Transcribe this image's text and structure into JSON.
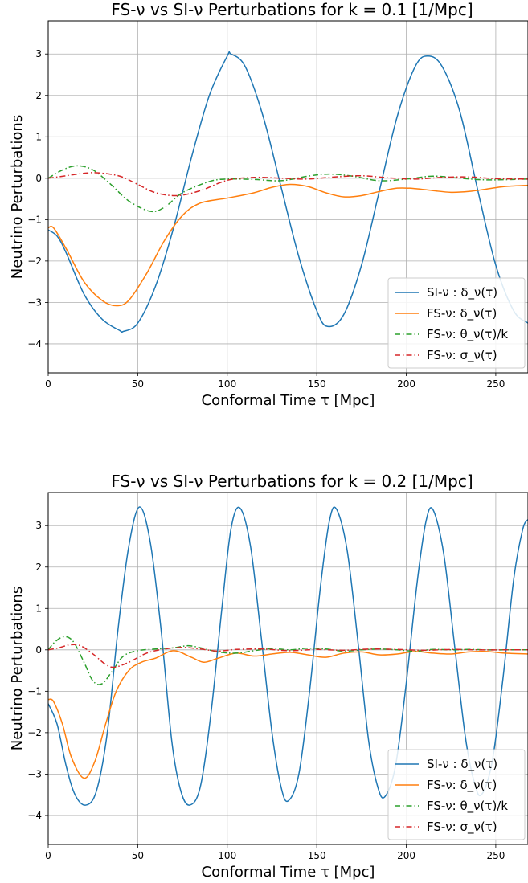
{
  "chart_data": [
    {
      "type": "line",
      "title": "FS-ν vs SI-ν Perturbations for k = 0.1 [1/Mpc]",
      "xlabel": "Conformal Time τ [Mpc]",
      "ylabel": "Neutrino Perturbations",
      "xlim": [
        0,
        268
      ],
      "ylim": [
        -4.7,
        3.8
      ],
      "xticks": [
        0,
        50,
        100,
        150,
        200,
        250
      ],
      "yticks": [
        -4,
        -3,
        -2,
        -1,
        0,
        1,
        2,
        3
      ],
      "grid": true,
      "legend_position": "lower-right",
      "series": [
        {
          "name": "SI-ν : δ_ν(τ)",
          "color": "#1f77b4",
          "dash": "solid",
          "x": [
            0,
            5,
            10,
            20,
            30,
            40,
            42,
            50,
            60,
            70,
            80,
            90,
            100,
            102,
            110,
            120,
            130,
            140,
            150,
            156,
            165,
            175,
            185,
            195,
            205,
            212,
            220,
            230,
            240,
            250,
            260,
            268
          ],
          "y": [
            -1.25,
            -1.4,
            -1.8,
            -2.8,
            -3.4,
            -3.68,
            -3.7,
            -3.5,
            -2.6,
            -1.2,
            0.5,
            2.0,
            2.95,
            3.0,
            2.7,
            1.5,
            -0.2,
            -1.9,
            -3.2,
            -3.58,
            -3.3,
            -2.1,
            -0.3,
            1.5,
            2.7,
            2.95,
            2.7,
            1.6,
            -0.3,
            -2.1,
            -3.2,
            -3.5
          ]
        },
        {
          "name": "FS-ν: δ_ν(τ)",
          "color": "#ff7f0e",
          "dash": "solid",
          "x": [
            0,
            3,
            10,
            20,
            30,
            38,
            45,
            55,
            65,
            75,
            85,
            100,
            115,
            125,
            135,
            145,
            155,
            165,
            175,
            185,
            195,
            205,
            215,
            225,
            235,
            245,
            255,
            268
          ],
          "y": [
            -1.2,
            -1.2,
            -1.7,
            -2.5,
            -2.95,
            -3.08,
            -2.95,
            -2.3,
            -1.5,
            -0.9,
            -0.6,
            -0.48,
            -0.35,
            -0.22,
            -0.15,
            -0.2,
            -0.35,
            -0.45,
            -0.42,
            -0.32,
            -0.24,
            -0.25,
            -0.3,
            -0.34,
            -0.32,
            -0.26,
            -0.2,
            -0.17
          ]
        },
        {
          "name": "FS-ν: θ_ν(τ)/k",
          "color": "#2ca02c",
          "dash": "dashdot",
          "x": [
            0,
            8,
            16,
            25,
            35,
            45,
            57,
            65,
            75,
            90,
            100,
            115,
            130,
            145,
            157,
            170,
            185,
            200,
            215,
            230,
            245,
            268
          ],
          "y": [
            0,
            0.2,
            0.3,
            0.2,
            -0.15,
            -0.55,
            -0.8,
            -0.7,
            -0.35,
            -0.08,
            -0.02,
            -0.03,
            -0.06,
            0.05,
            0.1,
            0.05,
            -0.06,
            -0.02,
            0.05,
            0.0,
            -0.04,
            -0.02
          ]
        },
        {
          "name": "FS-ν: σ_ν(τ)",
          "color": "#d62728",
          "dash": "dashdot",
          "x": [
            0,
            10,
            20,
            28,
            40,
            50,
            60,
            72,
            85,
            100,
            115,
            130,
            145,
            160,
            175,
            190,
            205,
            220,
            235,
            250,
            268
          ],
          "y": [
            0,
            0.06,
            0.12,
            0.13,
            0.05,
            -0.15,
            -0.35,
            -0.42,
            -0.3,
            -0.05,
            0.02,
            0.0,
            -0.02,
            0.03,
            0.06,
            0.01,
            -0.02,
            0.02,
            0.03,
            -0.01,
            -0.02
          ]
        }
      ]
    },
    {
      "type": "line",
      "title": "FS-ν vs SI-ν Perturbations for k = 0.2 [1/Mpc]",
      "xlabel": "Conformal Time τ [Mpc]",
      "ylabel": "Neutrino Perturbations",
      "xlim": [
        0,
        268
      ],
      "ylim": [
        -4.7,
        3.8
      ],
      "xticks": [
        0,
        50,
        100,
        150,
        200,
        250
      ],
      "yticks": [
        -4,
        -3,
        -2,
        -1,
        0,
        1,
        2,
        3
      ],
      "grid": true,
      "legend_position": "lower-right",
      "series": [
        {
          "name": "SI-ν : δ_ν(τ)",
          "color": "#1f77b4",
          "dash": "solid",
          "x": [
            0,
            5,
            10,
            15,
            21,
            27,
            33,
            39,
            45,
            51,
            57,
            63,
            69,
            74,
            79,
            85,
            91,
            97,
            102,
            107,
            113,
            119,
            125,
            130,
            134,
            140,
            146,
            152,
            157,
            161,
            167,
            173,
            179,
            184,
            188,
            194,
            200,
            206,
            211,
            215,
            221,
            227,
            233,
            238,
            242,
            248,
            254,
            260,
            265,
            268
          ],
          "y": [
            -1.3,
            -1.8,
            -2.8,
            -3.5,
            -3.75,
            -3.4,
            -2.0,
            0.5,
            2.5,
            3.45,
            2.6,
            0.5,
            -2.2,
            -3.4,
            -3.75,
            -3.3,
            -1.5,
            1.0,
            2.9,
            3.43,
            2.5,
            0.3,
            -2.0,
            -3.3,
            -3.65,
            -3.0,
            -1.0,
            1.5,
            3.1,
            3.4,
            2.4,
            0.2,
            -2.2,
            -3.3,
            -3.55,
            -2.8,
            -0.8,
            1.6,
            3.1,
            3.38,
            2.3,
            0.1,
            -2.1,
            -3.2,
            -3.5,
            -2.7,
            -0.7,
            1.7,
            2.9,
            3.15
          ]
        },
        {
          "name": "FS-ν: δ_ν(τ)",
          "color": "#ff7f0e",
          "dash": "solid",
          "x": [
            0,
            3,
            8,
            13,
            20,
            26,
            32,
            38,
            45,
            52,
            60,
            70,
            80,
            87,
            95,
            105,
            115,
            125,
            135,
            145,
            155,
            165,
            175,
            185,
            195,
            205,
            215,
            225,
            235,
            245,
            255,
            268
          ],
          "y": [
            -1.2,
            -1.25,
            -1.8,
            -2.6,
            -3.1,
            -2.7,
            -1.8,
            -1.0,
            -0.5,
            -0.3,
            -0.2,
            -0.02,
            -0.18,
            -0.3,
            -0.2,
            -0.08,
            -0.15,
            -0.1,
            -0.06,
            -0.12,
            -0.18,
            -0.08,
            -0.05,
            -0.12,
            -0.1,
            -0.04,
            -0.08,
            -0.1,
            -0.05,
            -0.04,
            -0.08,
            -0.1
          ]
        },
        {
          "name": "FS-ν: θ_ν(τ)/k",
          "color": "#2ca02c",
          "dash": "dashdot",
          "x": [
            0,
            4,
            9,
            14,
            20,
            25,
            30,
            36,
            42,
            50,
            60,
            70,
            78,
            85,
            95,
            105,
            115,
            125,
            135,
            145,
            155,
            165,
            175,
            185,
            195,
            205,
            215,
            225,
            235,
            245,
            255,
            268
          ],
          "y": [
            0,
            0.2,
            0.32,
            0.2,
            -0.3,
            -0.75,
            -0.82,
            -0.5,
            -0.15,
            -0.02,
            0.02,
            0.05,
            0.1,
            0.05,
            -0.05,
            -0.08,
            -0.02,
            0.03,
            0.0,
            0.04,
            0.02,
            -0.03,
            0.0,
            0.02,
            0.0,
            -0.03,
            0.01,
            0.0,
            0.01,
            0.0,
            0.0,
            0.0
          ]
        },
        {
          "name": "FS-ν: σ_ν(τ)",
          "color": "#d62728",
          "dash": "dashdot",
          "x": [
            0,
            6,
            12,
            18,
            25,
            32,
            37,
            45,
            55,
            65,
            75,
            85,
            95,
            105,
            120,
            135,
            150,
            165,
            180,
            195,
            210,
            225,
            240,
            255,
            268
          ],
          "y": [
            0,
            0.05,
            0.12,
            0.1,
            -0.1,
            -0.35,
            -0.42,
            -0.3,
            -0.08,
            0.02,
            0.06,
            0.02,
            -0.03,
            0.01,
            0.02,
            -0.02,
            0.01,
            -0.01,
            0.02,
            0.01,
            -0.01,
            0.01,
            0.0,
            0.0,
            0.0
          ]
        }
      ]
    }
  ]
}
